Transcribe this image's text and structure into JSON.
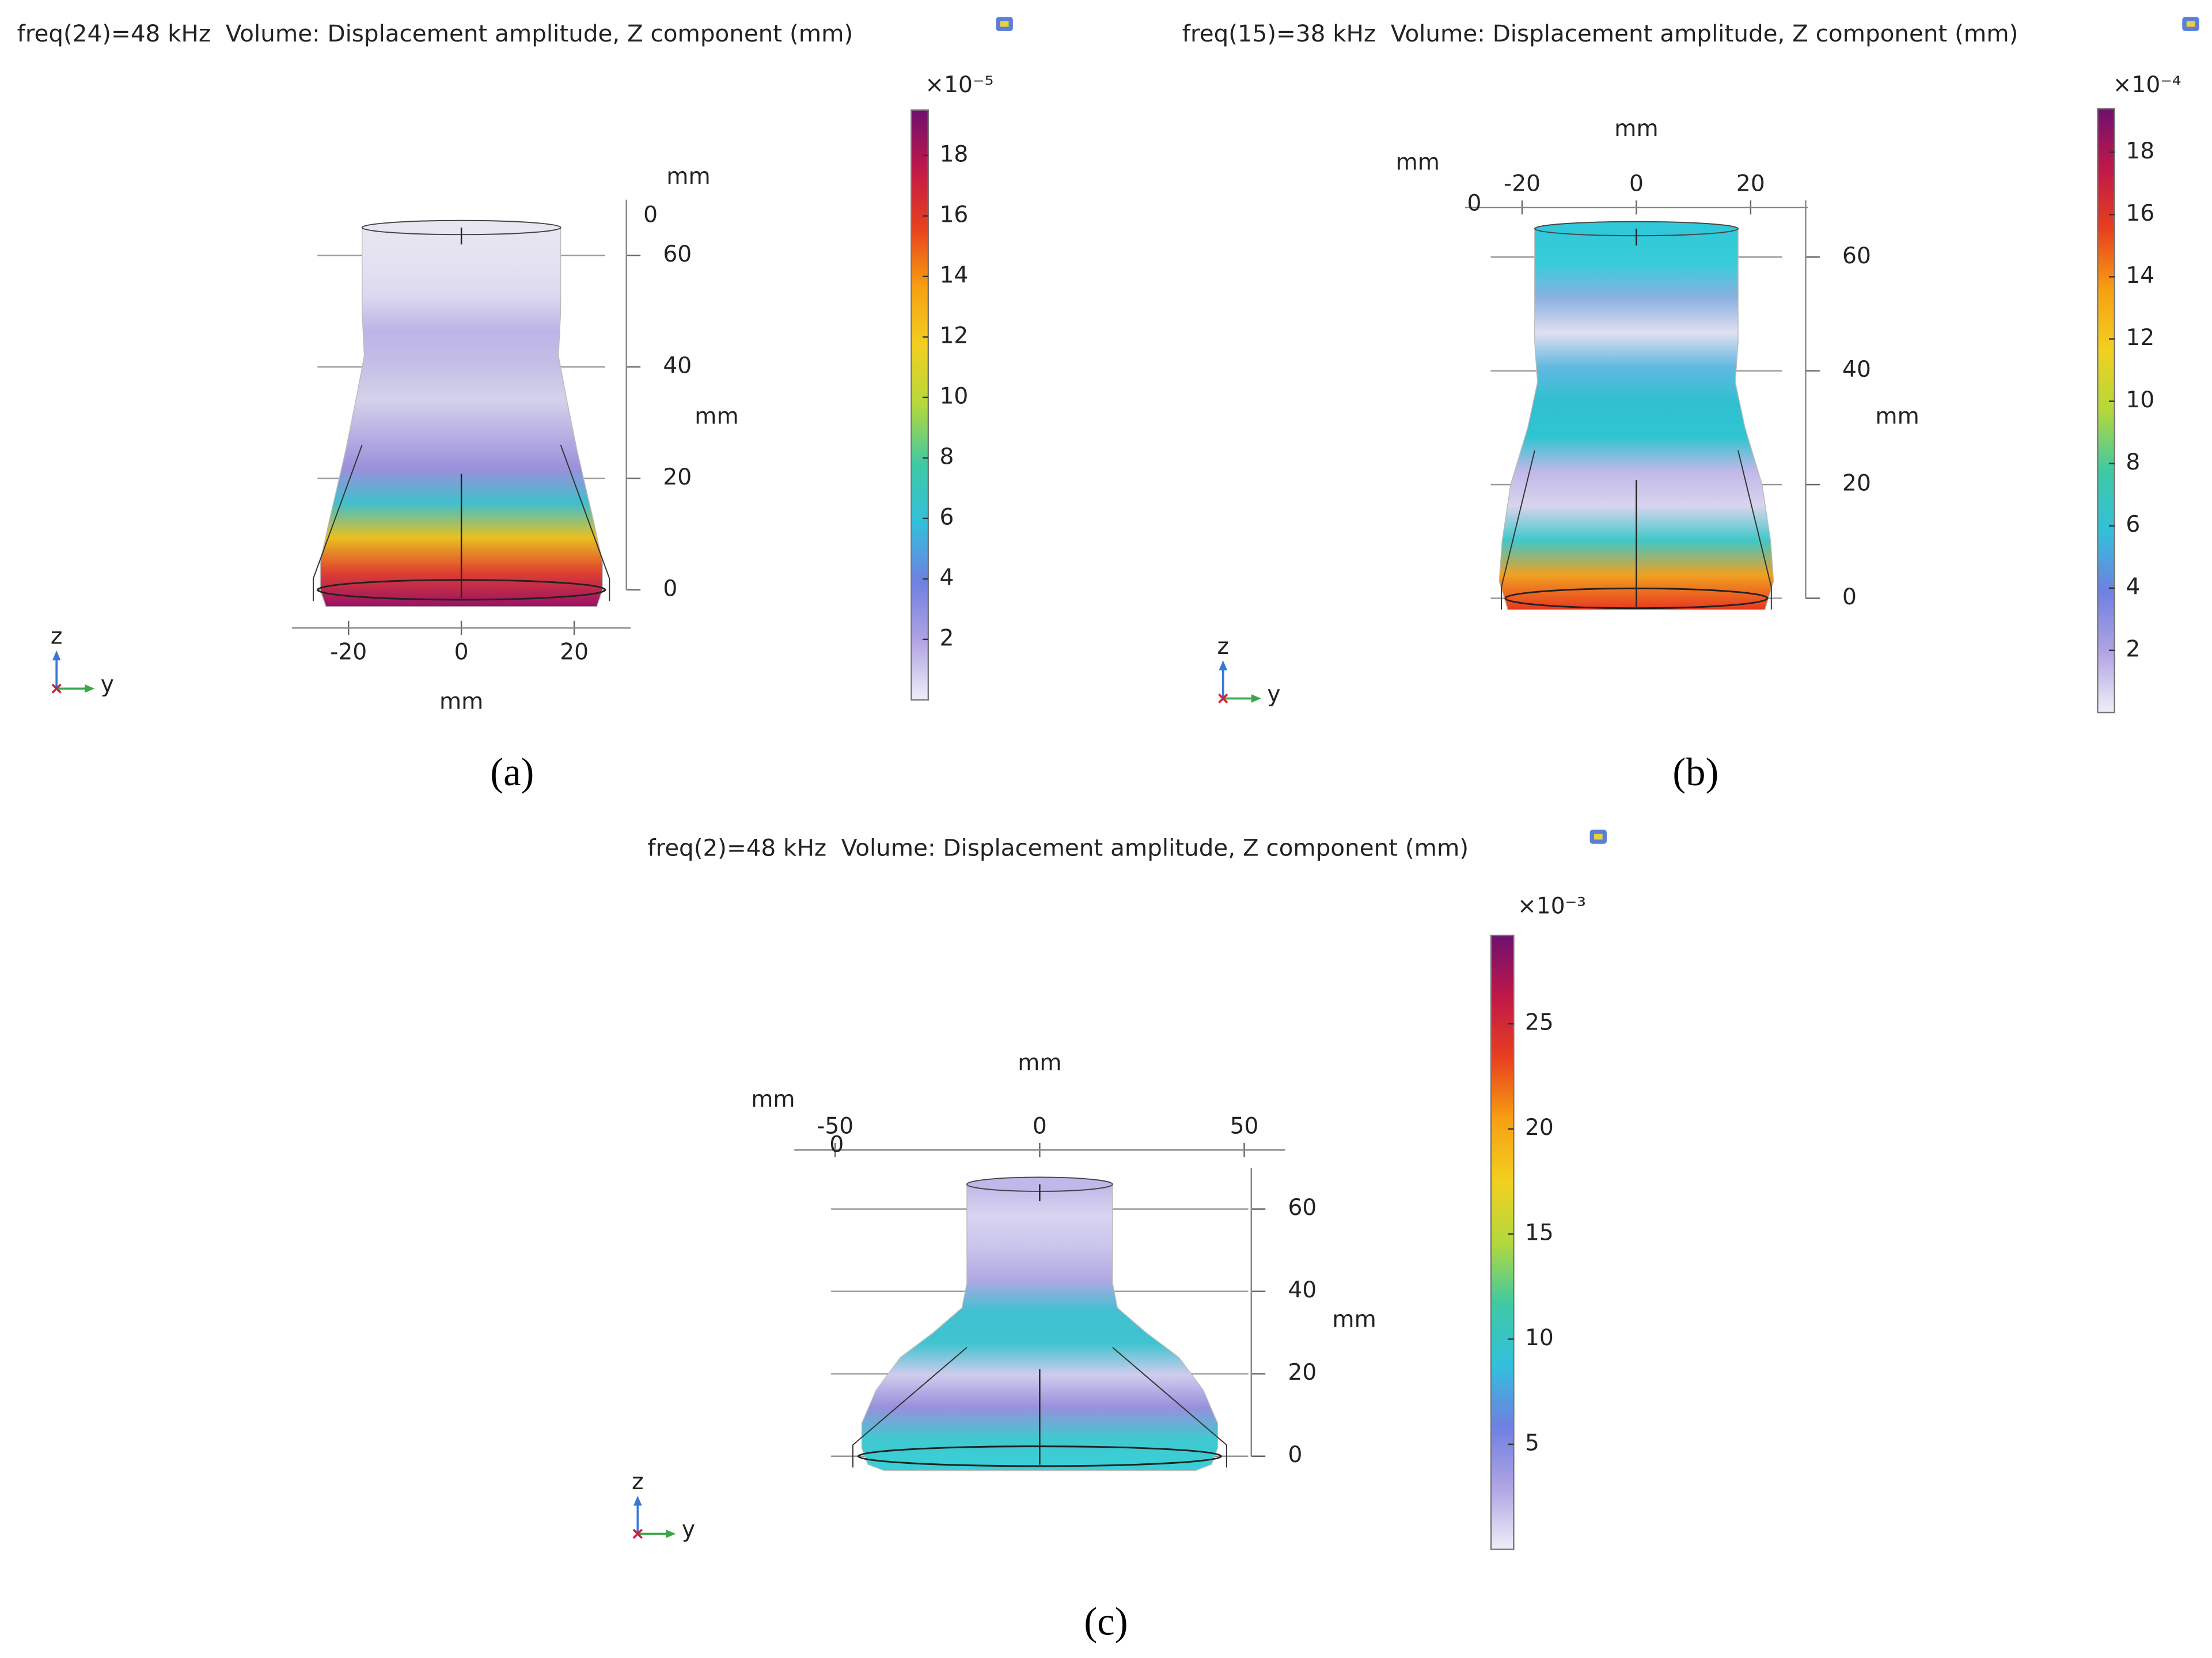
{
  "chart_data": [
    {
      "type": "surface3d",
      "title": "freq(24)=48 kHz  Volume: Displacement amplitude, Z component (mm)",
      "panel_label": "(a)",
      "xticks": [
        0
      ],
      "x_label": "mm",
      "ylim": [
        -30,
        30
      ],
      "yticks": [
        -20,
        0,
        20
      ],
      "y_label": "mm",
      "zlim": [
        0,
        70
      ],
      "zticks": [
        0,
        20,
        40,
        60
      ],
      "z_label": "mm",
      "triad": [
        "z",
        "y"
      ],
      "colorbar": {
        "label": "×10⁻⁵",
        "lim": [
          0,
          19.5
        ],
        "ticks": [
          2,
          4,
          6,
          8,
          10,
          12,
          14,
          16,
          18
        ],
        "colors": [
          "#f0eef8",
          "#b0a4e4",
          "#6f80e0",
          "#33bfdc",
          "#3fc9a4",
          "#b4d83c",
          "#f2d020",
          "#f7a012",
          "#e8401e",
          "#c01848",
          "#6e1070"
        ]
      },
      "body_colors": [
        "#e8e6f0",
        "#e4e2f0",
        "#dcd8f0",
        "#bcb4e6",
        "#c4bfe6",
        "#d4d2ea",
        "#b8b0e4",
        "#9a90dc",
        "#40c0cc",
        "#e8c020",
        "#e04030",
        "#9a1068"
      ]
    },
    {
      "type": "surface3d",
      "title": "freq(15)=38 kHz  Volume: Displacement amplitude, Z component (mm)",
      "panel_label": "(b)",
      "xticks": [
        0
      ],
      "x_label": "mm",
      "ylim": [
        -30,
        30
      ],
      "yticks": [
        -20,
        0,
        20
      ],
      "y_label": "mm",
      "zlim": [
        0,
        70
      ],
      "zticks": [
        0,
        20,
        40,
        60
      ],
      "z_label": "mm",
      "triad": [
        "z",
        "y"
      ],
      "colorbar": {
        "label": "×10⁻⁴",
        "lim": [
          0,
          19.4
        ],
        "ticks": [
          2,
          4,
          6,
          8,
          10,
          12,
          14,
          16,
          18
        ],
        "colors": [
          "#f0eef8",
          "#b0a4e4",
          "#6f80e0",
          "#33bfdc",
          "#3fc9a4",
          "#b4d83c",
          "#f2d020",
          "#f7a012",
          "#e8401e",
          "#c01848",
          "#6e1070"
        ]
      },
      "body_colors": [
        "#30c8d8",
        "#38ccd8",
        "#8ab0e0",
        "#e0e0f0",
        "#60b8e0",
        "#30c0d0",
        "#30c4d0",
        "#c0b8e8",
        "#d8d4ee",
        "#40c8c8",
        "#f0a020",
        "#e83820"
      ]
    },
    {
      "type": "surface3d",
      "title": "freq(2)=48 kHz  Volume: Displacement amplitude, Z component (mm)",
      "panel_label": "(c)",
      "xticks": [
        0
      ],
      "x_label": "mm",
      "ylim": [
        -60,
        60
      ],
      "yticks": [
        -50,
        0,
        50
      ],
      "y_label": "mm",
      "zlim": [
        0,
        70
      ],
      "zticks": [
        0,
        20,
        40,
        60
      ],
      "z_label": "mm",
      "triad": [
        "z",
        "y"
      ],
      "colorbar": {
        "label": "×10⁻³",
        "lim": [
          0,
          29.2
        ],
        "ticks": [
          5,
          10,
          15,
          20,
          25
        ],
        "colors": [
          "#f0eef8",
          "#b0a4e4",
          "#6f80e0",
          "#33bfdc",
          "#3fc9a4",
          "#b4d83c",
          "#f2d020",
          "#f7a012",
          "#e8401e",
          "#c01848",
          "#6e1070"
        ]
      },
      "body_colors": [
        "#c0b8e8",
        "#d8d4f0",
        "#c8c4ec",
        "#b0a8e4",
        "#40c0d0",
        "#40c4d0",
        "#d0ccee",
        "#9890dc",
        "#40c8d0",
        "#38d0d8"
      ]
    }
  ]
}
